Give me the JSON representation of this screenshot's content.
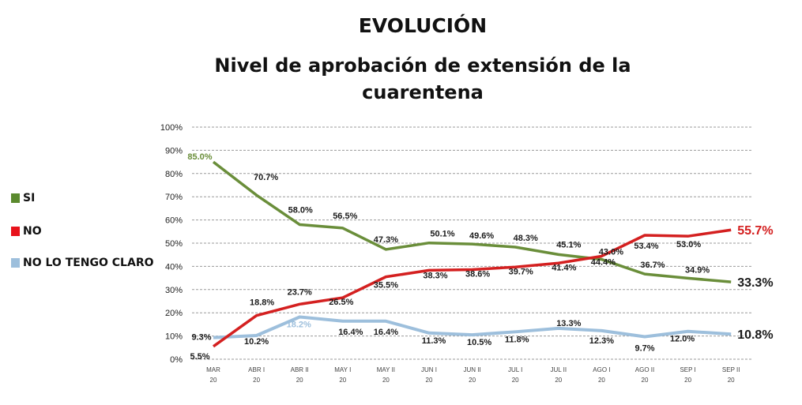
{
  "header": {
    "title": "EVOLUCIÓN",
    "subtitle_line1": "Nivel de aprobación de extensión de la",
    "subtitle_line2": "cuarentena"
  },
  "chart_data": {
    "type": "line",
    "title": "Nivel de aprobación de extensión de la cuarentena",
    "xlabel": "",
    "ylabel": "",
    "ylim": [
      0,
      100
    ],
    "grid": true,
    "legend_position": "left",
    "y_ticks": [
      "0%",
      "10%",
      "20%",
      "30%",
      "40%",
      "50%",
      "60%",
      "70%",
      "80%",
      "90%",
      "100%"
    ],
    "categories": [
      {
        "line1": "MAR",
        "line2": "20"
      },
      {
        "line1": "ABR I",
        "line2": "20"
      },
      {
        "line1": "ABR II",
        "line2": "20"
      },
      {
        "line1": "MAY I",
        "line2": "20"
      },
      {
        "line1": "MAY II",
        "line2": "20"
      },
      {
        "line1": "JUN I",
        "line2": "20"
      },
      {
        "line1": "JUN II",
        "line2": "20"
      },
      {
        "line1": "JUL I",
        "line2": "20"
      },
      {
        "line1": "JUL II",
        "line2": "20"
      },
      {
        "line1": "AGO I",
        "line2": "20"
      },
      {
        "line1": "AGO II",
        "line2": "20"
      },
      {
        "line1": "SEP I",
        "line2": "20"
      },
      {
        "line1": "SEP II",
        "line2": "20"
      }
    ],
    "series": [
      {
        "name": "SI",
        "color": "#6a8e3a",
        "values": [
          85.0,
          70.7,
          58.0,
          56.5,
          47.3,
          50.1,
          49.6,
          48.3,
          45.1,
          43.0,
          36.7,
          34.9,
          33.3
        ],
        "labels": [
          "85.0%",
          "70.7%",
          "58.0%",
          "56.5%",
          "47.3%",
          "50.1%",
          "49.6%",
          "48.3%",
          "45.1%",
          "43.0%",
          "36.7%",
          "34.9%",
          "33.3%"
        ]
      },
      {
        "name": "NO",
        "color": "#d42020",
        "values": [
          5.5,
          18.8,
          23.7,
          26.5,
          35.5,
          38.3,
          38.6,
          39.7,
          41.4,
          44.4,
          53.4,
          53.0,
          55.7
        ],
        "labels": [
          "5.5%",
          "18.8%",
          "23.7%",
          "26.5%",
          "35.5%",
          "38.3%",
          "38.6%",
          "39.7%",
          "41.4%",
          "44.4%",
          "53.4%",
          "53.0%",
          "55.7%"
        ]
      },
      {
        "name": "NO LO TENGO CLARO",
        "color": "#9dbfdc",
        "values": [
          9.3,
          10.2,
          18.2,
          16.4,
          16.4,
          11.3,
          10.5,
          11.8,
          13.3,
          12.3,
          9.7,
          12.0,
          10.8
        ],
        "labels": [
          "9.3%",
          "10.2%",
          "18.2%",
          "16.4%",
          "16.4%",
          "11.3%",
          "10.5%",
          "11.8%",
          "13.3%",
          "12.3%",
          "9.7%",
          "12.0%",
          "10.8%"
        ]
      }
    ]
  }
}
